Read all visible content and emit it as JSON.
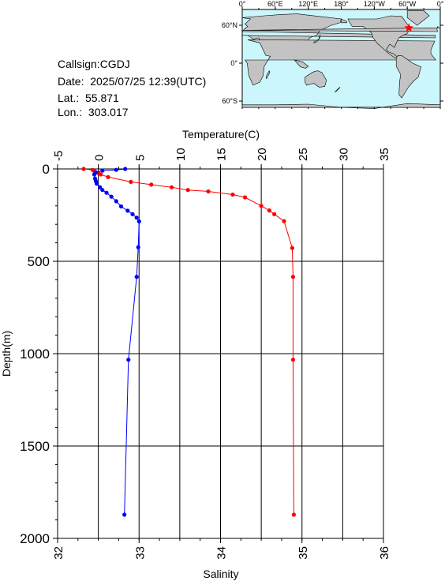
{
  "station": {
    "callsign": "Callsign:CGDJ",
    "date": "Date:  2025/07/25 12:39(UTC)",
    "lat": "Lat.:  55.871",
    "lon": "Lon.:  303.017"
  },
  "map": {
    "lon_ticks": [
      "0°",
      "60°E",
      "120°E",
      "180°",
      "120°W",
      "60°W",
      "0°"
    ],
    "lat_ticks": [
      "60°N",
      "0°",
      "60°S"
    ],
    "marker": {
      "lat": 55.871,
      "lon": 303.017,
      "symbol": "star"
    },
    "colors": {
      "ocean": "#cbf6fb",
      "land": "#c3c3c3",
      "marker": "#ff0000"
    }
  },
  "chart_data": {
    "type": "line",
    "title": "",
    "top_axis": {
      "label": "Temperature(C)",
      "ticks": [
        "-5",
        "0",
        "5",
        "10",
        "15",
        "20",
        "25",
        "30",
        "35"
      ],
      "range": [
        -5,
        35
      ]
    },
    "bottom_axis": {
      "label": "Salinity",
      "ticks": [
        "32",
        "33",
        "34",
        "35",
        "36"
      ],
      "range": [
        32,
        36
      ]
    },
    "y_axis": {
      "label": "Depth(m)",
      "ticks": [
        "0",
        "500",
        "1000",
        "1500",
        "2000"
      ],
      "range": [
        0,
        2000
      ],
      "inverted": true
    },
    "grid": true,
    "series": [
      {
        "axis": "temperature",
        "color": "#ff0000",
        "points": [
          {
            "x": -1.8,
            "y": 0
          },
          {
            "x": -0.7,
            "y": 5
          },
          {
            "x": -0.5,
            "y": 12
          },
          {
            "x": -0.3,
            "y": 20
          },
          {
            "x": 0.0,
            "y": 22
          },
          {
            "x": 0.3,
            "y": 30
          },
          {
            "x": 1.2,
            "y": 44
          },
          {
            "x": 4.0,
            "y": 70
          },
          {
            "x": 6.5,
            "y": 85
          },
          {
            "x": 9.0,
            "y": 99
          },
          {
            "x": 11.0,
            "y": 114
          },
          {
            "x": 13.5,
            "y": 122
          },
          {
            "x": 16.5,
            "y": 139
          },
          {
            "x": 18.0,
            "y": 154
          },
          {
            "x": 20.0,
            "y": 200
          },
          {
            "x": 21.0,
            "y": 225
          },
          {
            "x": 21.6,
            "y": 245
          },
          {
            "x": 22.8,
            "y": 283
          },
          {
            "x": 23.8,
            "y": 428
          },
          {
            "x": 23.9,
            "y": 584
          },
          {
            "x": 23.9,
            "y": 1033
          },
          {
            "x": 24.0,
            "y": 1872
          }
        ]
      },
      {
        "axis": "salinity",
        "color": "#0000ff",
        "points": [
          {
            "x": 32.83,
            "y": 0
          },
          {
            "x": 32.72,
            "y": 5
          },
          {
            "x": 32.55,
            "y": 9
          },
          {
            "x": 32.47,
            "y": 18
          },
          {
            "x": 32.45,
            "y": 30
          },
          {
            "x": 32.46,
            "y": 52
          },
          {
            "x": 32.47,
            "y": 66
          },
          {
            "x": 32.48,
            "y": 80
          },
          {
            "x": 32.52,
            "y": 99
          },
          {
            "x": 32.55,
            "y": 114
          },
          {
            "x": 32.6,
            "y": 129
          },
          {
            "x": 32.66,
            "y": 150
          },
          {
            "x": 32.72,
            "y": 175
          },
          {
            "x": 32.78,
            "y": 203
          },
          {
            "x": 32.86,
            "y": 226
          },
          {
            "x": 32.92,
            "y": 245
          },
          {
            "x": 32.97,
            "y": 264
          },
          {
            "x": 33.0,
            "y": 284
          },
          {
            "x": 32.99,
            "y": 424
          },
          {
            "x": 32.97,
            "y": 584
          },
          {
            "x": 32.87,
            "y": 1033
          },
          {
            "x": 32.82,
            "y": 1872
          }
        ]
      }
    ]
  }
}
